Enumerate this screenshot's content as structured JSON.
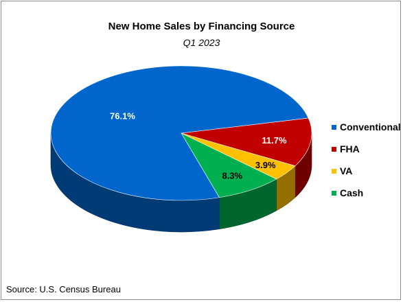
{
  "chart_data": {
    "type": "pie",
    "title": "New Home Sales by Financing Source",
    "subtitle": "Q1 2023",
    "categories": [
      "Conventional",
      "FHA",
      "VA",
      "Cash"
    ],
    "values": [
      76.1,
      11.7,
      3.9,
      8.3
    ],
    "data_labels": [
      "76.1%",
      "11.7%",
      "3.9%",
      "8.3%"
    ],
    "colors": [
      "#0066CC",
      "#C00000",
      "#FFC000",
      "#00B050"
    ],
    "style": "3d-pie",
    "legend_position": "right",
    "source": "Source: U.S. Census Bureau"
  }
}
